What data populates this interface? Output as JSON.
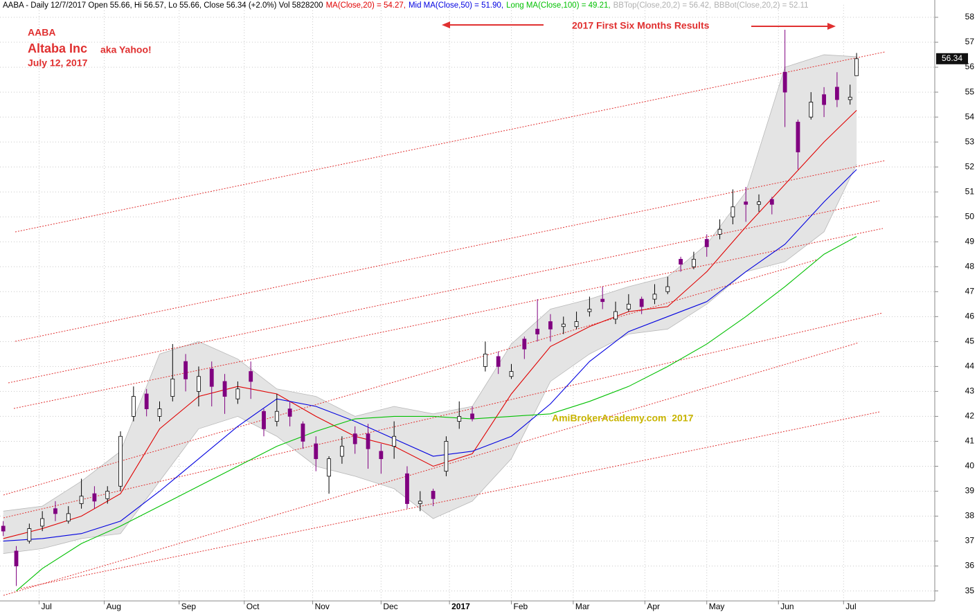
{
  "chart_data": {
    "type": "candlestick",
    "header": [
      {
        "text": "AABA - Daily 12/7/2017 Open 55.66, Hi 56.57, Lo 55.66, Close 56.34 (+2.0%) Vol 5828200",
        "color": "#000000"
      },
      {
        "text": "MA(Close,20) = 54.27,",
        "color": "#e00000"
      },
      {
        "text": "Mid MA(Close,50) = 51.90,",
        "color": "#0000e0"
      },
      {
        "text": "Long MA(Close,100) = 49.21,",
        "color": "#00c000"
      },
      {
        "text": "BBTop(Close,20,2) = 56.42,",
        "color": "#b0b0b0"
      },
      {
        "text": "BBBot(Close,20,2) = 52.11",
        "color": "#b0b0b0"
      }
    ],
    "annotations": {
      "ticker": "AABA",
      "company": "Altaba Inc",
      "aka": "aka Yahoo!",
      "date": "July 12, 2017",
      "banner": "2017 First Six Months Results",
      "watermark": "AmiBrokerAcademy.com  2017"
    },
    "last_price": 56.34,
    "up_color": "#ffffff",
    "down_color": "#800080",
    "x": [
      0,
      4,
      8,
      12,
      16,
      20,
      24,
      28,
      32,
      36,
      40,
      44,
      48,
      52,
      56,
      60,
      64,
      68,
      72,
      76,
      80,
      84,
      88,
      92,
      96,
      100,
      104,
      108,
      112,
      116,
      120,
      124,
      128,
      132,
      136,
      140,
      144,
      148,
      152,
      156,
      160,
      164,
      168,
      172,
      176,
      180,
      184,
      188,
      192,
      196,
      200,
      204,
      208,
      212,
      216,
      220,
      224,
      228,
      232,
      236,
      240,
      244,
      248,
      252,
      256,
      260,
      262
    ],
    "open": [
      37.6,
      36.6,
      37.0,
      37.6,
      38.3,
      37.8,
      38.5,
      38.9,
      38.7,
      39.2,
      42.0,
      42.9,
      42.0,
      42.8,
      44.2,
      43.0,
      43.9,
      43.4,
      42.7,
      43.8,
      42.2,
      41.8,
      42.3,
      41.7,
      40.9,
      39.6,
      40.4,
      41.3,
      41.3,
      40.6,
      40.8,
      39.7,
      38.5,
      39.0,
      39.8,
      41.8,
      42.1,
      44.0,
      44.4,
      43.6,
      45.1,
      45.5,
      45.8,
      45.6,
      45.6,
      46.2,
      46.7,
      45.9,
      46.3,
      46.7,
      46.7,
      47.0,
      48.3,
      48.0,
      49.1,
      49.3,
      50.0,
      50.6,
      50.5,
      50.7,
      55.8,
      53.8,
      54.0,
      54.9,
      55.2,
      54.7,
      55.66
    ],
    "high": [
      37.8,
      36.8,
      37.7,
      38.2,
      38.6,
      38.4,
      39.5,
      39.2,
      39.2,
      41.4,
      43.2,
      43.1,
      42.6,
      44.9,
      44.5,
      44.0,
      44.2,
      43.7,
      43.4,
      44.2,
      42.3,
      42.9,
      42.6,
      41.8,
      41.2,
      40.4,
      41.2,
      41.6,
      41.7,
      40.9,
      41.8,
      40.0,
      39.0,
      39.1,
      41.2,
      42.6,
      42.4,
      45.0,
      44.6,
      44.1,
      45.2,
      46.7,
      46.1,
      46.0,
      46.2,
      46.8,
      47.2,
      46.6,
      46.9,
      46.8,
      47.3,
      47.6,
      48.4,
      48.6,
      49.3,
      49.9,
      51.1,
      51.2,
      50.9,
      50.8,
      57.5,
      53.9,
      55.0,
      55.2,
      55.8,
      55.3,
      56.57
    ],
    "low": [
      37.2,
      35.2,
      36.9,
      37.4,
      37.8,
      37.7,
      38.3,
      38.3,
      38.5,
      39.0,
      41.8,
      42.0,
      41.8,
      42.6,
      43.0,
      42.4,
      42.4,
      42.1,
      42.5,
      42.7,
      41.2,
      41.6,
      41.6,
      40.7,
      39.8,
      38.9,
      40.1,
      40.5,
      39.9,
      39.7,
      40.3,
      38.3,
      38.2,
      38.4,
      39.6,
      41.5,
      41.8,
      43.8,
      43.7,
      43.5,
      44.3,
      45.0,
      45.0,
      45.3,
      45.5,
      46.0,
      46.3,
      45.7,
      46.2,
      46.1,
      46.5,
      46.9,
      47.8,
      47.9,
      48.4,
      49.1,
      49.7,
      49.8,
      50.2,
      50.1,
      53.6,
      51.9,
      53.9,
      54.0,
      54.4,
      54.5,
      55.66
    ],
    "close": [
      37.4,
      36.0,
      37.5,
      37.9,
      38.1,
      38.1,
      38.8,
      38.6,
      39.0,
      41.2,
      42.8,
      42.3,
      42.3,
      43.5,
      43.5,
      43.6,
      43.2,
      42.8,
      43.1,
      43.4,
      41.5,
      42.2,
      42.0,
      41.0,
      40.3,
      40.3,
      40.8,
      40.9,
      40.7,
      40.3,
      41.2,
      38.5,
      38.6,
      38.7,
      41.0,
      42.0,
      41.9,
      44.5,
      44.0,
      43.8,
      44.7,
      45.3,
      45.5,
      45.7,
      45.8,
      46.3,
      46.6,
      46.2,
      46.5,
      46.4,
      46.9,
      47.2,
      48.1,
      48.3,
      48.8,
      49.5,
      50.4,
      50.5,
      50.6,
      50.5,
      55.0,
      52.6,
      54.6,
      54.5,
      54.7,
      54.8,
      56.34
    ],
    "band": {
      "color": "#e4e4e4",
      "x": [
        0,
        12,
        24,
        36,
        48,
        60,
        72,
        84,
        96,
        108,
        120,
        132,
        144,
        156,
        168,
        180,
        192,
        204,
        216,
        228,
        240,
        252,
        262
      ],
      "upper": [
        38.2,
        38.4,
        39.4,
        40.6,
        44.5,
        45.0,
        44.3,
        43.1,
        42.8,
        42.0,
        42.4,
        42.1,
        42.4,
        44.9,
        46.3,
        46.7,
        47.2,
        47.6,
        48.9,
        51.0,
        56.0,
        56.5,
        56.42
      ],
      "lower": [
        36.5,
        36.7,
        37.1,
        37.3,
        39.4,
        41.5,
        42.0,
        41.2,
        40.0,
        39.6,
        39.1,
        37.9,
        38.6,
        40.3,
        43.4,
        44.5,
        45.3,
        45.5,
        46.5,
        47.8,
        48.2,
        49.4,
        52.11
      ]
    },
    "overlays": [
      {
        "color": "#e00000",
        "x": [
          0,
          12,
          24,
          36,
          48,
          60,
          72,
          84,
          96,
          108,
          120,
          132,
          144,
          156,
          168,
          180,
          192,
          204,
          216,
          228,
          240,
          252,
          262
        ],
        "values": [
          37.1,
          37.5,
          38.0,
          38.9,
          41.5,
          42.8,
          43.2,
          42.9,
          42.0,
          41.2,
          40.8,
          40.0,
          40.5,
          42.9,
          44.8,
          45.6,
          46.2,
          46.4,
          47.8,
          49.6,
          51.3,
          53.0,
          54.27
        ]
      },
      {
        "color": "#0000e0",
        "x": [
          0,
          12,
          24,
          36,
          48,
          60,
          72,
          84,
          96,
          108,
          120,
          132,
          144,
          156,
          168,
          180,
          192,
          204,
          216,
          228,
          240,
          252,
          262
        ],
        "values": [
          37.0,
          37.1,
          37.3,
          37.8,
          39.0,
          40.3,
          41.6,
          42.7,
          42.4,
          41.8,
          41.1,
          40.4,
          40.6,
          41.2,
          42.5,
          44.2,
          45.4,
          46.0,
          46.6,
          47.8,
          48.9,
          50.6,
          51.9
        ]
      },
      {
        "color": "#00c000",
        "x": [
          4,
          12,
          24,
          36,
          48,
          60,
          72,
          84,
          96,
          108,
          120,
          132,
          144,
          156,
          168,
          180,
          192,
          204,
          216,
          228,
          240,
          252,
          262
        ],
        "values": [
          35.0,
          35.9,
          36.9,
          37.6,
          38.4,
          39.2,
          40.0,
          40.8,
          41.4,
          41.9,
          42.0,
          42.0,
          41.9,
          42.0,
          42.1,
          42.6,
          43.2,
          44.0,
          44.9,
          46.0,
          47.2,
          48.5,
          49.21
        ]
      }
    ],
    "xlim": [
      -1,
      286
    ],
    "xticks": [
      {
        "value": 11,
        "label": "Jul"
      },
      {
        "value": 31,
        "label": "Aug"
      },
      {
        "value": 54,
        "label": "Sep"
      },
      {
        "value": 74,
        "label": "Oct"
      },
      {
        "value": 95,
        "label": "Nov"
      },
      {
        "value": 116,
        "label": "Dec"
      },
      {
        "value": 137,
        "label": "2017"
      },
      {
        "value": 156,
        "label": "Feb"
      },
      {
        "value": 175,
        "label": "Mar"
      },
      {
        "value": 197,
        "label": "Apr"
      },
      {
        "value": 216,
        "label": "May"
      },
      {
        "value": 238,
        "label": "Jun"
      },
      {
        "value": 258,
        "label": "Jul"
      }
    ],
    "ylim": [
      34.6,
      58.5
    ],
    "yticks": [
      35,
      36,
      37,
      38,
      39,
      40,
      41,
      42,
      43,
      44,
      45,
      46,
      47,
      48,
      49,
      50,
      51,
      52,
      53,
      54,
      55,
      56,
      57,
      58
    ],
    "grid": true
  }
}
